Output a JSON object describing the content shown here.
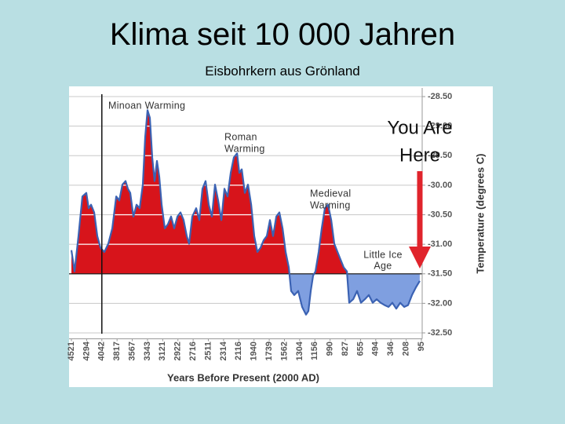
{
  "chart_data": {
    "type": "area",
    "title": "Klima seit 10 000 Jahren",
    "subtitle": "Eisbohrkern aus Grönland",
    "xlabel": "Years Before Present (2000 AD)",
    "ylabel": "Temperature (degrees C)",
    "annotations": [
      {
        "lines": [
          "Minoan Warming"
        ]
      },
      {
        "lines": [
          "Roman",
          "Warming"
        ]
      },
      {
        "lines": [
          "Medieval",
          "Warming"
        ]
      },
      {
        "lines": [
          "Little Ice",
          "Age"
        ]
      },
      {
        "lines": [
          "You Are",
          "Here"
        ]
      }
    ],
    "xlim": [
      4521,
      95
    ],
    "xticks": [
      4521,
      4294,
      4042,
      3817,
      3567,
      3343,
      3121,
      2922,
      2716,
      2511,
      2314,
      2116,
      1940,
      1739,
      1562,
      1304,
      1156,
      990,
      827,
      655,
      494,
      346,
      208,
      95
    ],
    "ylim": [
      -32.6,
      -28.4
    ],
    "yticks": [
      {
        "value": -28.5,
        "label": "-28.50"
      },
      {
        "value": -29,
        "label": "-29.00"
      },
      {
        "value": -29.5,
        "label": "-29.50"
      },
      {
        "value": -30,
        "label": "-30.00"
      },
      {
        "value": -30.5,
        "label": "-30.50"
      },
      {
        "value": -31,
        "label": "-31.00"
      },
      {
        "value": -31.5,
        "label": "-31.50"
      },
      {
        "value": -32,
        "label": "-32.00"
      },
      {
        "value": -32.5,
        "label": "-32.50"
      }
    ],
    "grid": true,
    "baseline": -31.5,
    "vline": 4042,
    "line_color": "#3b62b3",
    "above_color": "#d7141b",
    "below_color": "#7f9fe0",
    "x": [
      4521,
      4474,
      4416,
      4357,
      4299,
      4260,
      4221,
      4169,
      4117,
      4065,
      4005,
      3947,
      3888,
      3830,
      3780,
      3729,
      3677,
      3639,
      3600,
      3550,
      3504,
      3458,
      3412,
      3377,
      3343,
      3308,
      3274,
      3239,
      3205,
      3171,
      3136,
      3094,
      3053,
      3012,
      2971,
      2929,
      2887,
      2845,
      2802,
      2770,
      2728,
      2675,
      2633,
      2590,
      2548,
      2506,
      2465,
      2425,
      2384,
      2343,
      2303,
      2262,
      2221,
      2180,
      2139,
      2110,
      2082,
      2046,
      2010,
      1973,
      1937,
      1895,
      1854,
      1812,
      1771,
      1731,
      1694,
      1657,
      1621,
      1584,
      1542,
      1488,
      1448,
      1395,
      1329,
      1280,
      1242,
      1219,
      1196,
      1173,
      1150,
      1115,
      1081,
      1047,
      1013,
      978,
      945,
      911,
      878,
      844,
      809,
      783,
      738,
      694,
      650,
      609,
      567,
      526,
      485,
      447,
      408,
      370,
      333,
      298,
      262,
      226,
      194,
      165,
      136,
      107
    ],
    "values": [
      -31.1,
      -31.46,
      -30.86,
      -30.19,
      -30.13,
      -30.39,
      -30.33,
      -30.46,
      -30.86,
      -31.06,
      -31.13,
      -30.99,
      -30.73,
      -30.19,
      -30.26,
      -29.99,
      -29.93,
      -30.06,
      -30.13,
      -30.53,
      -30.33,
      -30.39,
      -29.99,
      -29.19,
      -28.73,
      -28.86,
      -29.53,
      -29.93,
      -29.59,
      -29.86,
      -30.33,
      -30.73,
      -30.66,
      -30.53,
      -30.73,
      -30.53,
      -30.46,
      -30.59,
      -30.86,
      -30.99,
      -30.53,
      -30.39,
      -30.59,
      -30.06,
      -29.93,
      -30.33,
      -30.53,
      -29.99,
      -30.26,
      -30.59,
      -30.06,
      -30.19,
      -29.79,
      -29.53,
      -29.46,
      -29.79,
      -29.73,
      -30.13,
      -29.99,
      -30.33,
      -30.86,
      -31.13,
      -31.06,
      -30.93,
      -30.86,
      -30.59,
      -30.86,
      -30.53,
      -30.46,
      -30.73,
      -31.13,
      -31.39,
      -31.79,
      -31.86,
      -31.79,
      -32.06,
      -32.19,
      -32.13,
      -31.79,
      -31.53,
      -31.46,
      -31.13,
      -30.73,
      -30.39,
      -30.33,
      -30.59,
      -30.99,
      -31.13,
      -31.26,
      -31.39,
      -31.46,
      -31.99,
      -31.93,
      -31.79,
      -31.99,
      -31.93,
      -31.86,
      -31.99,
      -31.93,
      -31.99,
      -32.03,
      -32.06,
      -31.99,
      -32.09,
      -31.99,
      -32.06,
      -32.03,
      -31.86,
      -31.73,
      -31.62
    ]
  }
}
